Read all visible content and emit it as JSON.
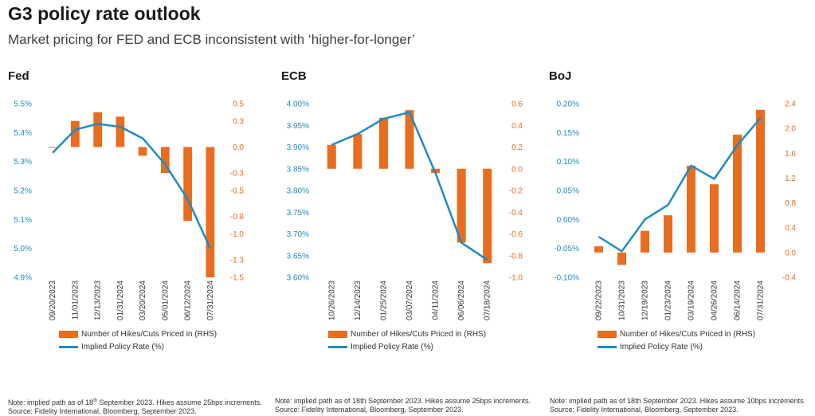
{
  "header": {
    "title": "G3 policy rate outlook",
    "subtitle": "Market pricing for FED and ECB inconsistent with ‘higher-for-longer’"
  },
  "legend": {
    "bars": "Number of Hikes/Cuts Priced in (RHS)",
    "line": "Implied Policy Rate (%)"
  },
  "colors": {
    "bar": "#e86d1f",
    "line": "#1f8bc4"
  },
  "notes": {
    "fed": {
      "line1_pre": "Note: implied path as of 18",
      "line1_sup": "th",
      "line1_post": " September 2023. Hikes assume 25bps increments.",
      "line2": "Source: Fidelity International, Bloomberg, September 2023."
    },
    "ecb": {
      "line1": "Note: implied path as of 18th September 2023. Hikes assume 25bps increments.",
      "line2": "Source: Fidelity International, Bloomberg, September 2023."
    },
    "boj": {
      "line1": "Note: implied path as of 18th September 2023. Hikes assume 10bps increments.",
      "line2": "Source: Fidelity International, Bloomberg, September 2023."
    }
  },
  "chart_data": [
    {
      "id": "fed",
      "type": "bar",
      "title": "Fed",
      "categories": [
        "09/20/2023",
        "11/01/2023",
        "12/13/2023",
        "01/31/2024",
        "03/20/2024",
        "05/01/2024",
        "06/12/2024",
        "07/31/2024"
      ],
      "series": [
        {
          "name": "Number of Hikes/Cuts Priced in (RHS)",
          "type": "bar",
          "axis": "right",
          "values": [
            0.0,
            0.3,
            0.4,
            0.35,
            -0.1,
            -0.3,
            -0.85,
            -1.5
          ]
        },
        {
          "name": "Implied Policy Rate (%)",
          "type": "line",
          "axis": "left",
          "values": [
            5.33,
            5.41,
            5.43,
            5.42,
            5.38,
            5.29,
            5.17,
            5.0
          ]
        }
      ],
      "y_left": {
        "min": 4.9,
        "max": 5.5,
        "ticks": [
          5.5,
          5.4,
          5.3,
          5.2,
          5.1,
          5.0,
          4.9
        ],
        "labels": [
          "5.5%",
          "5.4%",
          "5.3%",
          "5.2%",
          "5.1%",
          "5.0%",
          "4.9%"
        ]
      },
      "y_right": {
        "min": -1.5,
        "max": 0.5,
        "ticks": [
          0.5,
          0.3,
          0.0,
          -0.3,
          -0.5,
          -0.8,
          -1.0,
          -1.3,
          -1.5
        ],
        "labels": [
          "0.5",
          "0.3",
          "0.0",
          "-0.3",
          "-0.5",
          "-0.8",
          "-1.0",
          "-1.3",
          "-1.5"
        ]
      }
    },
    {
      "id": "ecb",
      "type": "bar",
      "title": "ECB",
      "categories": [
        "10/26/2023",
        "12/14/2023",
        "01/25/2024",
        "03/07/2024",
        "04/11/2024",
        "06/06/2024",
        "07/18/2024"
      ],
      "series": [
        {
          "name": "Number of Hikes/Cuts Priced in (RHS)",
          "type": "bar",
          "axis": "right",
          "values": [
            0.22,
            0.32,
            0.47,
            0.54,
            -0.04,
            -0.68,
            -0.87
          ]
        },
        {
          "name": "Implied Policy Rate (%)",
          "type": "line",
          "axis": "left",
          "values": [
            3.905,
            3.93,
            3.965,
            3.98,
            3.84,
            3.68,
            3.64
          ]
        }
      ],
      "y_left": {
        "min": 3.6,
        "max": 4.0,
        "ticks": [
          4.0,
          3.95,
          3.9,
          3.85,
          3.8,
          3.75,
          3.7,
          3.65,
          3.6
        ],
        "labels": [
          "4.00%",
          "3.95%",
          "3.90%",
          "3.85%",
          "3.80%",
          "3.75%",
          "3.70%",
          "3.65%",
          "3.60%"
        ]
      },
      "y_right": {
        "min": -1.0,
        "max": 0.6,
        "ticks": [
          0.6,
          0.4,
          0.2,
          0.0,
          -0.2,
          -0.4,
          -0.6,
          -0.8,
          -1.0
        ],
        "labels": [
          "0.6",
          "0.4",
          "0.2",
          "0.0",
          "-0.2",
          "-0.4",
          "-0.6",
          "-0.8",
          "-1.0"
        ]
      }
    },
    {
      "id": "boj",
      "type": "bar",
      "title": "BoJ",
      "categories": [
        "09/22/2023",
        "10/31/2023",
        "12/19/2023",
        "01/23/2024",
        "03/19/2024",
        "04/26/2024",
        "06/14/2024",
        "07/31/2024"
      ],
      "series": [
        {
          "name": "Number of Hikes/Cuts Priced in (RHS)",
          "type": "bar",
          "axis": "right",
          "values": [
            0.1,
            -0.2,
            0.35,
            0.6,
            1.4,
            1.1,
            1.9,
            2.3
          ]
        },
        {
          "name": "Implied Policy Rate (%)",
          "type": "line",
          "axis": "left",
          "values": [
            -0.03,
            -0.055,
            0.0,
            0.025,
            0.093,
            0.07,
            0.128,
            0.175
          ]
        }
      ],
      "y_left": {
        "min": -0.1,
        "max": 0.2,
        "ticks": [
          0.2,
          0.15,
          0.1,
          0.05,
          0.0,
          -0.05,
          -0.1
        ],
        "labels": [
          "0.20%",
          "0.15%",
          "0.10%",
          "0.05%",
          "0.00%",
          "-0.05%",
          "-0.10%"
        ]
      },
      "y_right": {
        "min": -0.4,
        "max": 2.4,
        "ticks": [
          2.4,
          2.0,
          1.6,
          1.2,
          0.8,
          0.4,
          0.0,
          -0.4
        ],
        "labels": [
          "2.4",
          "2.0",
          "1.6",
          "1.2",
          "0.8",
          "0.4",
          "0.0",
          "-0.4"
        ]
      }
    }
  ]
}
